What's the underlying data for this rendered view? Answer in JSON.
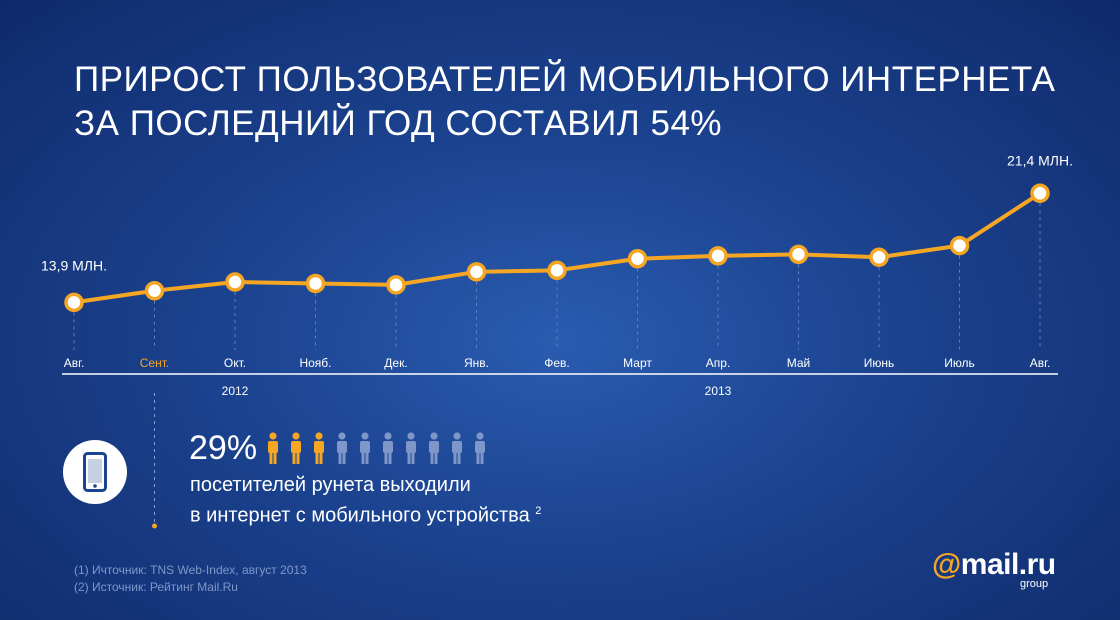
{
  "title": {
    "line1": "ПРИРОСТ ПОЛЬЗОВАТЕЛЕЙ МОБИЛЬНОГО ИНТЕРНЕТА",
    "line2": "ЗА ПОСЛЕДНИЙ ГОД СОСТАВИЛ 54%"
  },
  "chart_data": {
    "type": "line",
    "categories": [
      "Авг.",
      "Сент.",
      "Окт.",
      "Нояб.",
      "Дек.",
      "Янв.",
      "Фев.",
      "Март",
      "Апр.",
      "Май",
      "Июнь",
      "Июль",
      "Авг."
    ],
    "values": [
      13.9,
      14.7,
      15.3,
      15.2,
      15.1,
      16.0,
      16.1,
      16.9,
      17.1,
      17.2,
      17.0,
      17.8,
      21.4
    ],
    "highlight_category_index": 1,
    "year_labels": [
      {
        "text": "2012",
        "category_index": 2
      },
      {
        "text": "2013",
        "category_index": 8
      }
    ],
    "data_labels": [
      {
        "index": 0,
        "text": "13,9 МЛН."
      },
      {
        "index": 12,
        "text": "21,4 МЛН."
      }
    ],
    "ylim": [
      12,
      23
    ],
    "grid": false,
    "colors": {
      "line": "#f5a623",
      "point_fill": "#ffffff",
      "highlight_label": "#f5a623",
      "axis_label": "#ffffff",
      "dashed_guide": "#5f7fc0"
    }
  },
  "stat": {
    "percent": "29%",
    "percent_value": 29,
    "people_total": 10,
    "people_highlighted": 3,
    "people_highlight_color": "#f5a623",
    "people_base_color": "#7f96c8",
    "line1": "посетителей рунета выходили",
    "line2": "в интернет с мобильного устройства",
    "footnote": "2",
    "icon": "phone-icon"
  },
  "sources": {
    "line1": "(1) Ичточник: TNS Web-Index, август 2013",
    "line2": "(2) Источник: Рейтинг Mail.Ru"
  },
  "logo": {
    "at": "@",
    "name": "mail.ru",
    "group": "group"
  }
}
